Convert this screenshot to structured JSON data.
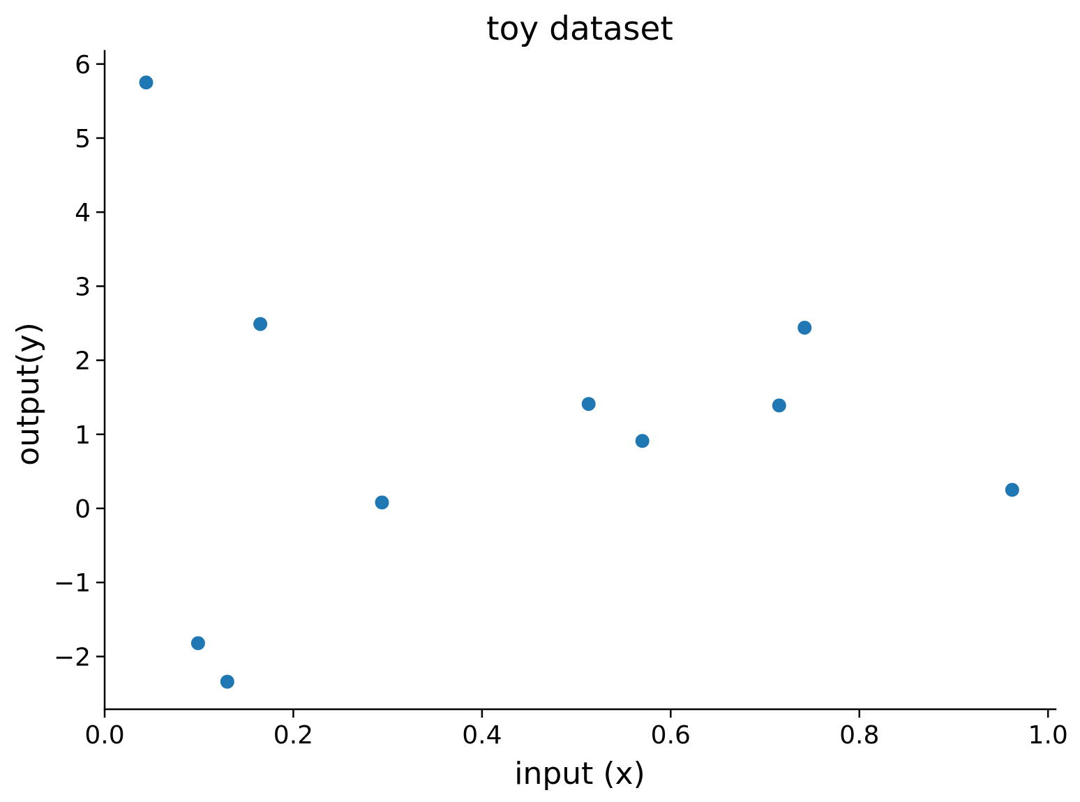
{
  "chart_data": {
    "type": "scatter",
    "title": "toy dataset",
    "xlabel": "input (x)",
    "ylabel": "output(y)",
    "marker_color": "#1f77b4",
    "marker_radius_px": 10,
    "axis_color": "#000000",
    "grid": false,
    "legend": null,
    "spines": [
      "left",
      "bottom"
    ],
    "xlim": [
      0.0,
      1.008
    ],
    "ylim": [
      -2.712,
      6.177
    ],
    "xticks": {
      "values": [
        0.0,
        0.2,
        0.4,
        0.6,
        0.8,
        1.0
      ],
      "labels": [
        "0.0",
        "0.2",
        "0.4",
        "0.6",
        "0.8",
        "1.0"
      ]
    },
    "yticks": {
      "values": [
        -2,
        -1,
        0,
        1,
        2,
        3,
        4,
        5,
        6
      ],
      "labels": [
        "−2",
        "−1",
        "0",
        "1",
        "2",
        "3",
        "4",
        "5",
        "6"
      ]
    },
    "points": [
      {
        "x": 0.044,
        "y": 5.75
      },
      {
        "x": 0.099,
        "y": -1.82
      },
      {
        "x": 0.13,
        "y": -2.34
      },
      {
        "x": 0.165,
        "y": 2.49
      },
      {
        "x": 0.294,
        "y": 0.08
      },
      {
        "x": 0.513,
        "y": 1.41
      },
      {
        "x": 0.57,
        "y": 0.91
      },
      {
        "x": 0.715,
        "y": 1.39
      },
      {
        "x": 0.742,
        "y": 2.44
      },
      {
        "x": 0.962,
        "y": 0.25
      }
    ]
  }
}
